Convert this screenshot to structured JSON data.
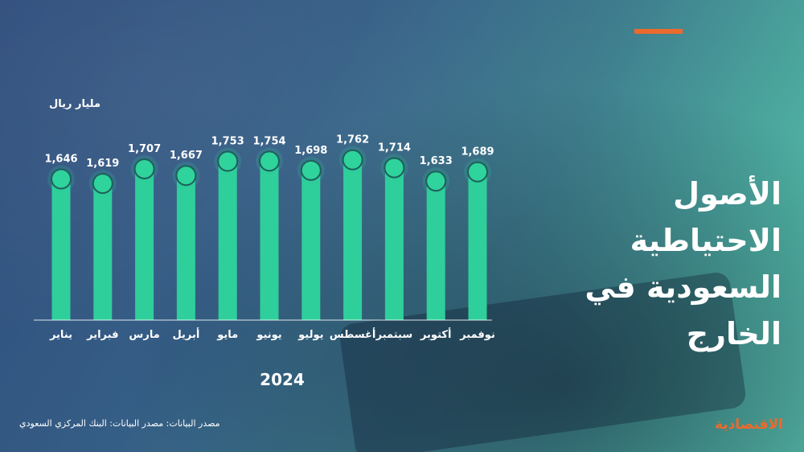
{
  "title_lines": [
    "الأصول الاحتياطية",
    "السعودية في",
    "الخارج"
  ],
  "unit_label": "مليار ريال",
  "year_label": "2024",
  "source_text": "مصدر البيانات: مصدر البيانات: البنك المركزي السعودي",
  "logo_text": "الاقتصادية",
  "colors": {
    "bar": "#2ecf9a",
    "dot": "#2fd39c",
    "accent": "#ec6a2c",
    "text": "#ffffff"
  },
  "chart_data": {
    "type": "bar",
    "categories": [
      "يناير",
      "فبراير",
      "مارس",
      "أبريل",
      "مايو",
      "يونيو",
      "يوليو",
      "أغسطس",
      "سبتمبر",
      "أكتوبر",
      "نوفمبر"
    ],
    "values": [
      1646,
      1619,
      1707,
      1667,
      1753,
      1754,
      1698,
      1762,
      1714,
      1633,
      1689
    ],
    "value_labels": [
      "1,646",
      "1,619",
      "1,707",
      "1,667",
      "1,753",
      "1,754",
      "1,698",
      "1,762",
      "1,714",
      "1,633",
      "1,689"
    ],
    "ylabel": "مليار ريال",
    "xlabel": "2024",
    "ylim": [
      0,
      1800
    ],
    "grid": false,
    "legend": false
  }
}
